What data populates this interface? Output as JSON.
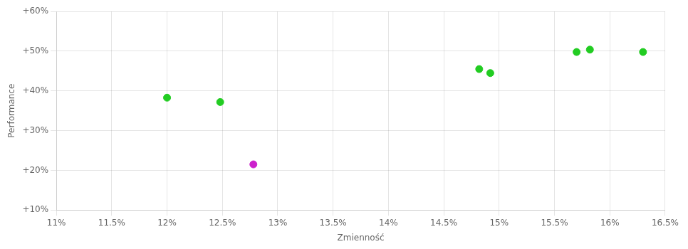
{
  "chart_data": {
    "type": "scatter",
    "xlabel": "Zmienność",
    "ylabel": "Performance",
    "xlim": [
      0.11,
      0.165
    ],
    "ylim": [
      0.1,
      0.6
    ],
    "xticks": [
      {
        "value": 0.11,
        "label": "11%"
      },
      {
        "value": 0.115,
        "label": "11.5%"
      },
      {
        "value": 0.12,
        "label": "12%"
      },
      {
        "value": 0.125,
        "label": "12.5%"
      },
      {
        "value": 0.13,
        "label": "13%"
      },
      {
        "value": 0.135,
        "label": "13.5%"
      },
      {
        "value": 0.14,
        "label": "14%"
      },
      {
        "value": 0.145,
        "label": "14.5%"
      },
      {
        "value": 0.15,
        "label": "15%"
      },
      {
        "value": 0.155,
        "label": "15.5%"
      },
      {
        "value": 0.16,
        "label": "16%"
      },
      {
        "value": 0.165,
        "label": "16.5%"
      }
    ],
    "yticks": [
      {
        "value": 0.1,
        "label": "+10%"
      },
      {
        "value": 0.2,
        "label": "+20%"
      },
      {
        "value": 0.3,
        "label": "+30%"
      },
      {
        "value": 0.4,
        "label": "+40%"
      },
      {
        "value": 0.5,
        "label": "+50%"
      },
      {
        "value": 0.6,
        "label": "+60%"
      }
    ],
    "grid": true,
    "series": [
      {
        "color": "#22cc22",
        "x": [
          0.12,
          0.1248,
          0.1482,
          0.1492,
          0.157,
          0.1582,
          0.163
        ],
        "values": [
          0.383,
          0.372,
          0.455,
          0.445,
          0.498,
          0.504,
          0.498
        ]
      },
      {
        "color": "#cc22cc",
        "x": [
          0.1278
        ],
        "values": [
          0.215
        ]
      }
    ]
  }
}
